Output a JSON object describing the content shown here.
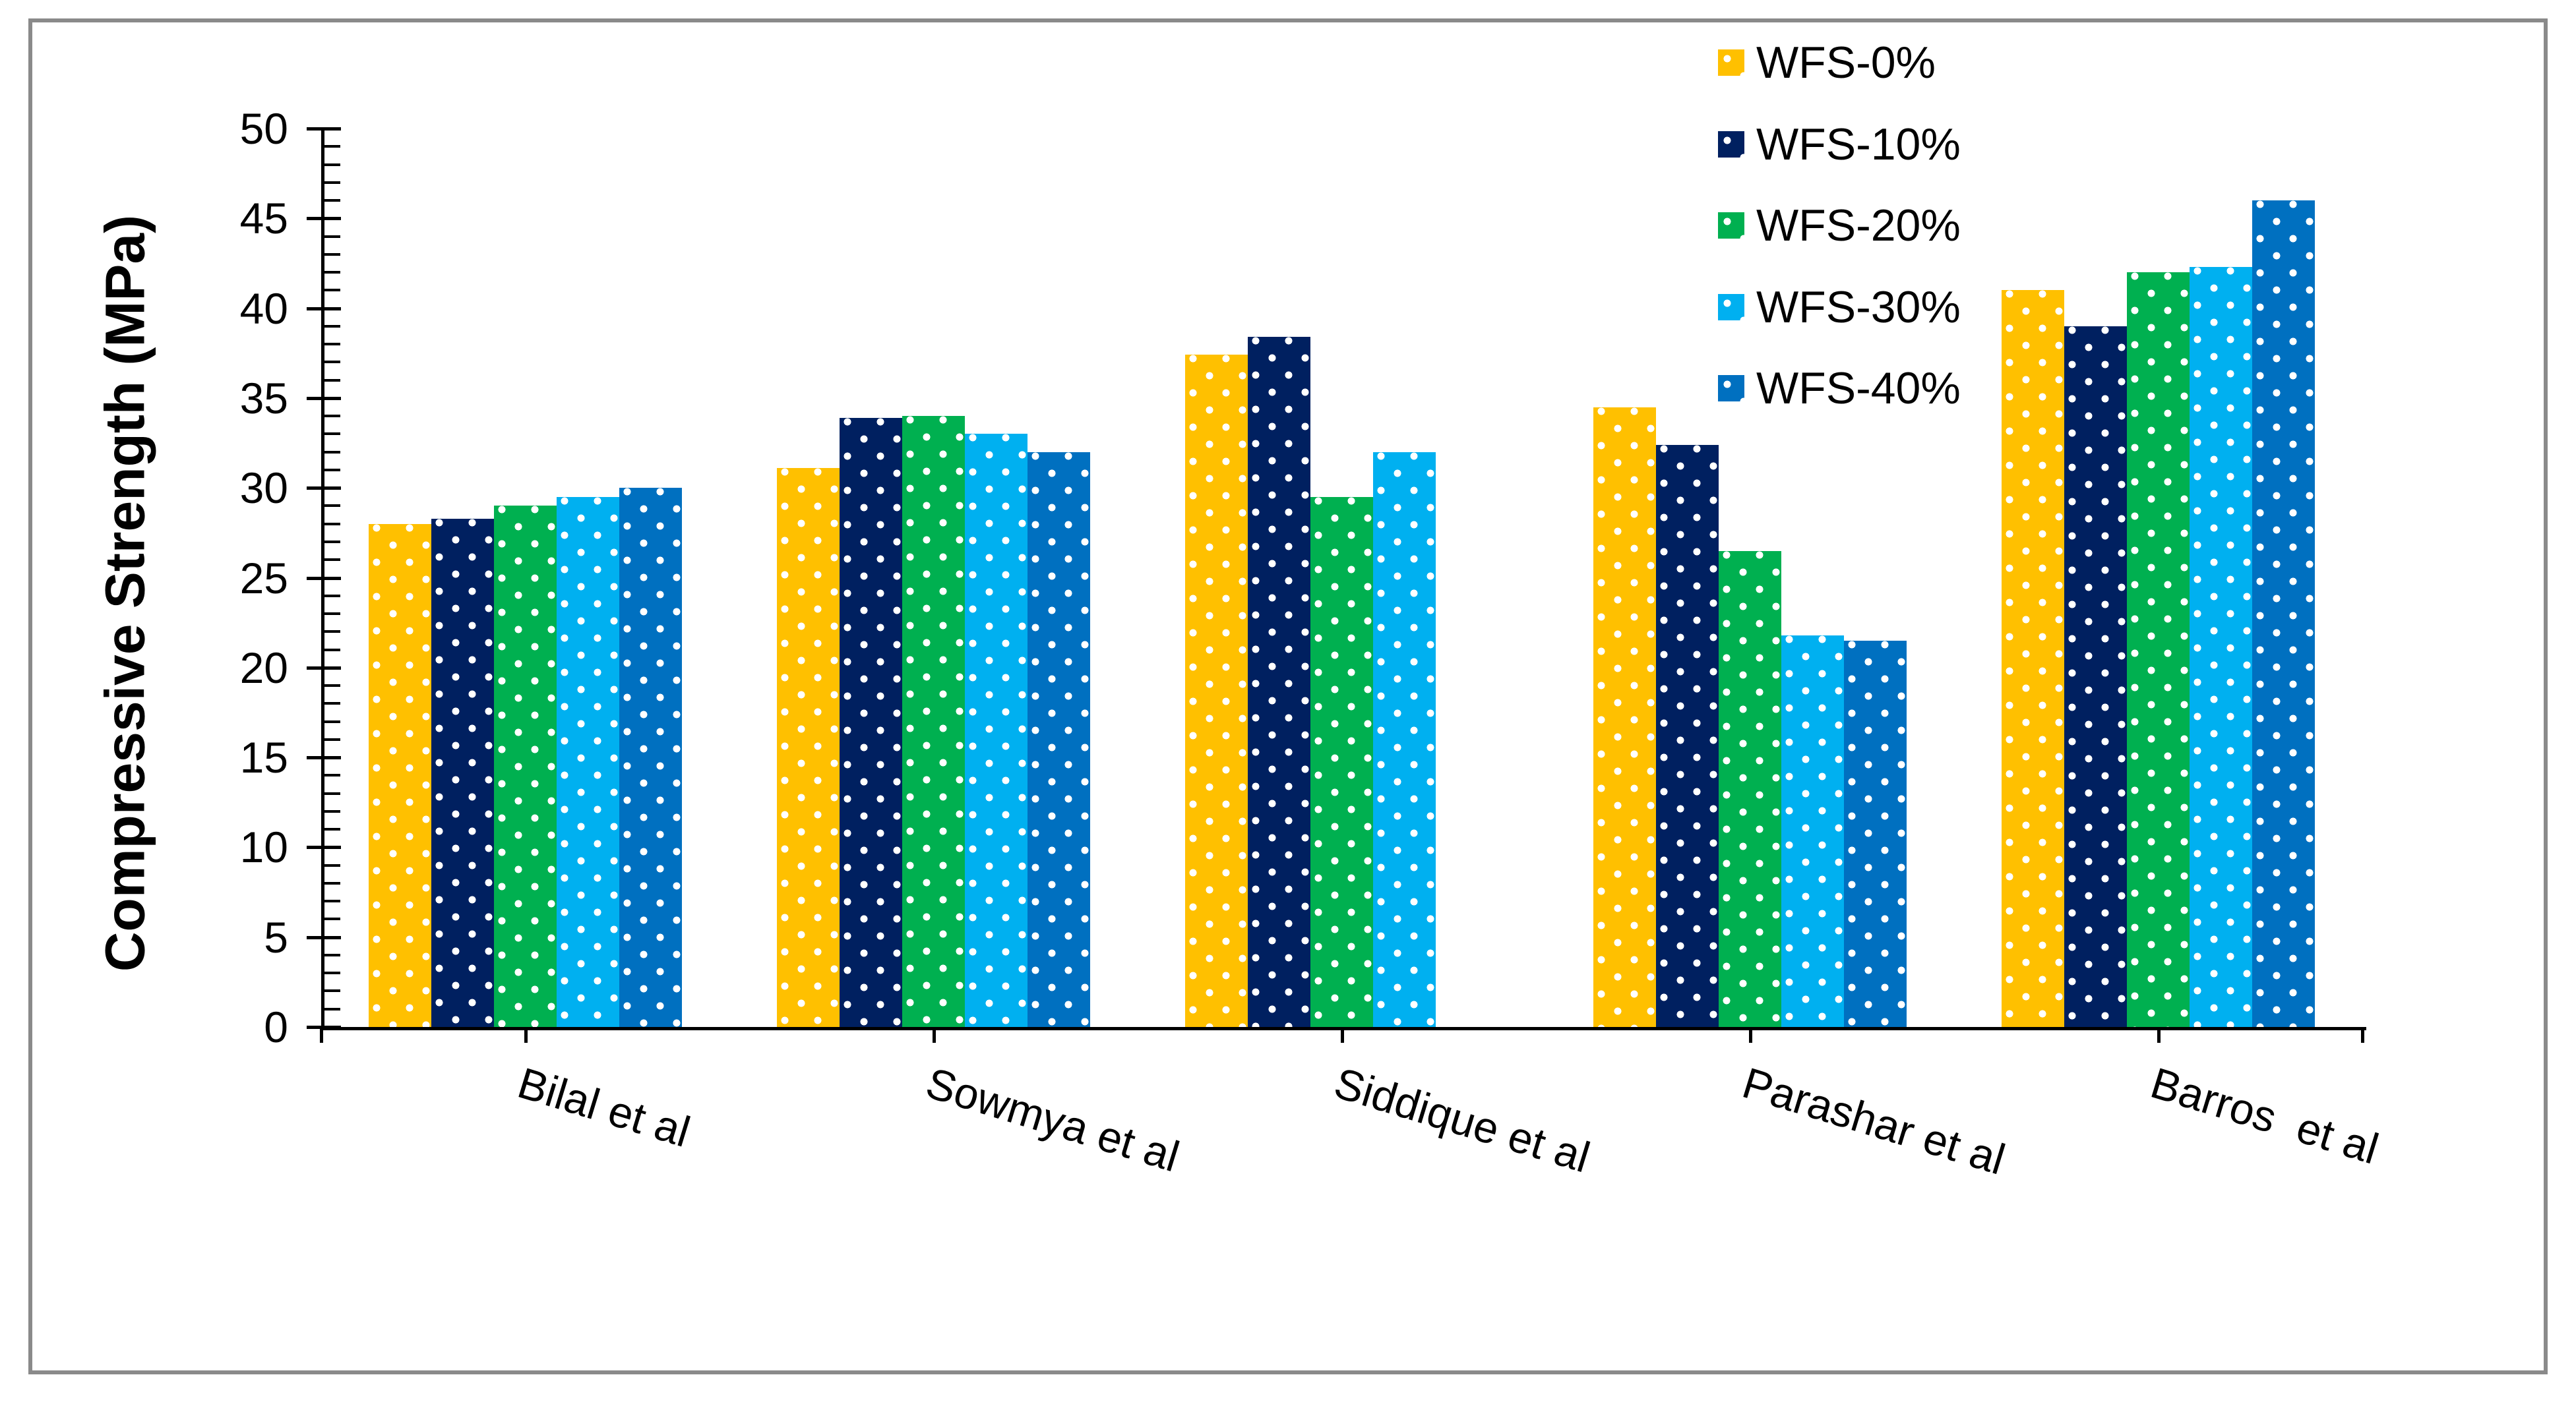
{
  "figure": {
    "background": "#FFFFFF",
    "border_color": "#8A8A8A",
    "pattern": "white-dots",
    "dot_color": "#FFFFFF"
  },
  "chart_data": {
    "type": "bar",
    "title": "",
    "xlabel": "",
    "ylabel": "Compressive Strength (MPa)",
    "ylim": [
      0,
      50
    ],
    "ytick_step": 5,
    "minor_tick_step": 1,
    "ytick_labels": [
      "0",
      "5",
      "10",
      "15",
      "20",
      "25",
      "30",
      "35",
      "40",
      "45",
      "50"
    ],
    "grid": false,
    "legend_position": "top-right",
    "categories": [
      "Bilal et al",
      "Sowmya et al",
      "Siddique et al",
      "Parashar et al",
      "Barros  et al"
    ],
    "series": [
      {
        "name": "WFS-0%",
        "color": "#FFC000",
        "values": [
          28,
          31.1,
          37.4,
          34.5,
          41
        ]
      },
      {
        "name": "WFS-10%",
        "color": "#002060",
        "values": [
          28.3,
          33.9,
          38.4,
          32.4,
          39
        ]
      },
      {
        "name": "WFS-20%",
        "color": "#00B050",
        "values": [
          29,
          34,
          29.5,
          26.5,
          42
        ]
      },
      {
        "name": "WFS-30%",
        "color": "#00B0F0",
        "values": [
          29.5,
          33,
          32,
          21.8,
          42.3
        ]
      },
      {
        "name": "WFS-40%",
        "color": "#0070C0",
        "values": [
          30,
          32,
          null,
          21.5,
          46
        ]
      }
    ]
  }
}
